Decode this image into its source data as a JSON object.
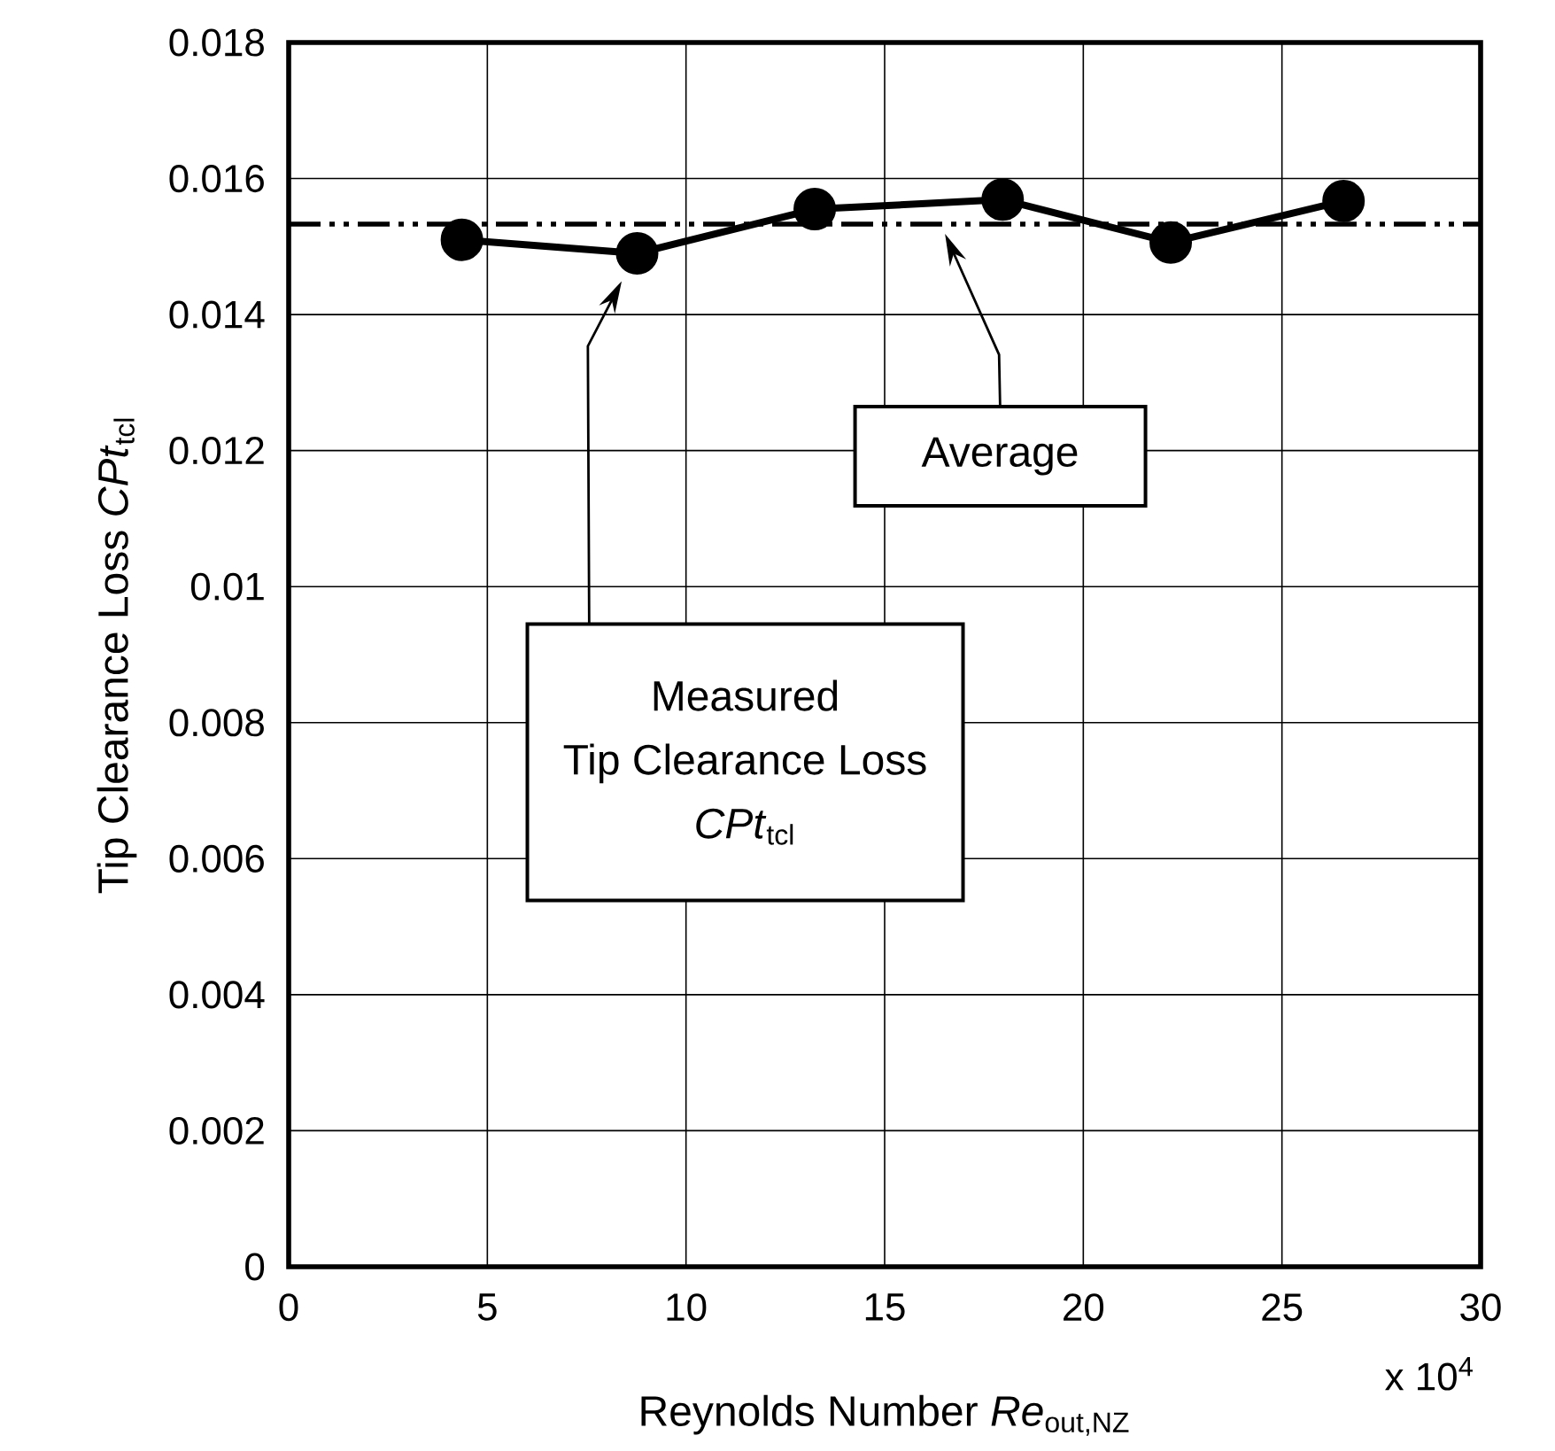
{
  "chart_data": {
    "type": "line",
    "xlabel": "Reynolds Number  *Re*$_{out,NZ}$",
    "ylabel": "Tip Clearance Loss  *CPt*$_{tcl}$",
    "x": [
      4.36,
      8.77,
      13.24,
      17.97,
      22.2,
      26.55
    ],
    "values": [
      0.0151,
      0.0149,
      0.01555,
      0.01569,
      0.01506,
      0.01567
    ],
    "color": "#000000",
    "marker": "circle",
    "line_style": "solid",
    "grid": true,
    "xlim": [
      0,
      30
    ],
    "xticks": [
      0,
      5,
      10,
      15,
      20,
      25,
      30
    ],
    "ylim": [
      0,
      0.018
    ],
    "yticks": [
      0,
      0.002,
      0.004,
      0.006,
      0.008,
      0.01,
      0.012,
      0.014,
      0.016,
      0.018
    ],
    "ref_lines": [
      {
        "axis": "y",
        "value": 0.01533,
        "label": "Average",
        "color": "#000000",
        "line_style": "dashdotdotted"
      }
    ],
    "annotations": [
      "Measured",
      "Tip Clearance Loss",
      "*CPt*$_{tcl}$",
      "x 10$^{4}$"
    ]
  }
}
